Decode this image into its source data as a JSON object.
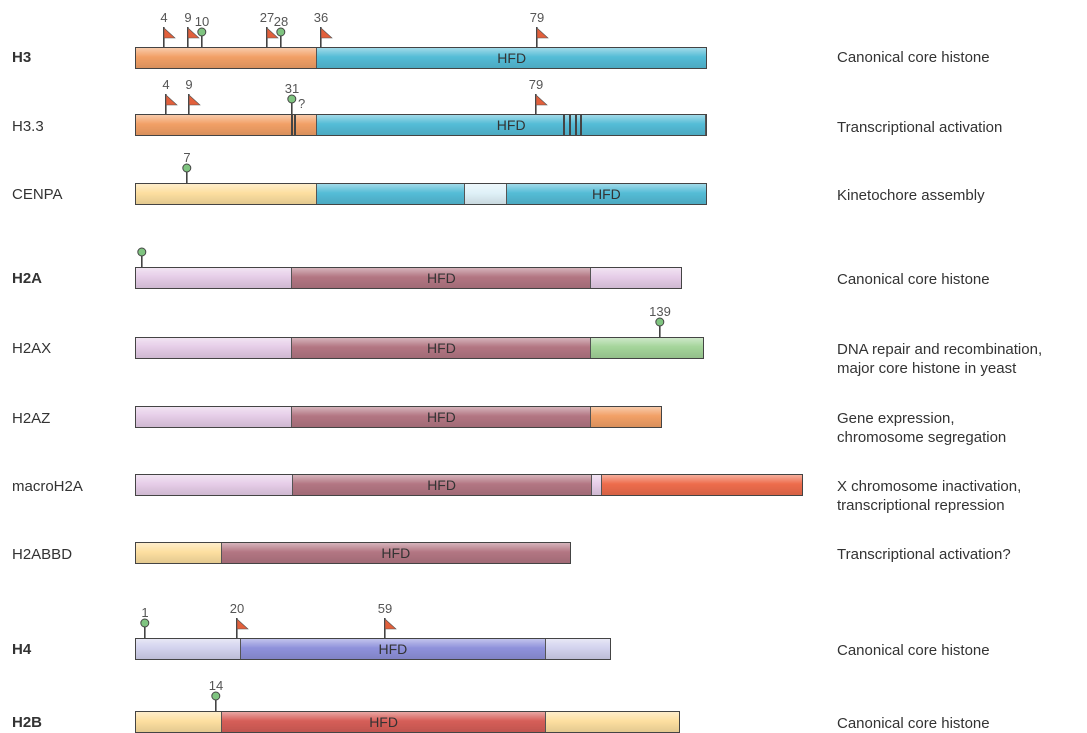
{
  "colors": {
    "orange": "#f2a066",
    "blue": "#54bcd6",
    "blue_light": "#dff1f8",
    "yellow": "#fddfa0",
    "lilac": "#e6cde8",
    "mauve": "#b37683",
    "green": "#a4d49a",
    "red_orange": "#ee6c4c",
    "periwinkle_light": "#d3d3ee",
    "periwinkle": "#8f92dc",
    "red": "#d65e58",
    "marker_green": "#7fc480",
    "marker_red": "#e2603c"
  },
  "rows": [
    {
      "name": "H3",
      "bold": true,
      "description": [
        "Canonical core histone"
      ],
      "segments": [
        {
          "color": "orange",
          "label": ""
        },
        {
          "color": "blue",
          "label": "HFD"
        }
      ],
      "markers": [
        {
          "num": "4",
          "type": "flag"
        },
        {
          "num": "9",
          "type": "flag"
        },
        {
          "num": "10",
          "type": "lollipop"
        },
        {
          "num": "27",
          "type": "flag"
        },
        {
          "num": "28",
          "type": "lollipop"
        },
        {
          "num": "36",
          "type": "flag"
        },
        {
          "num": "79",
          "type": "flag"
        }
      ]
    },
    {
      "name": "H3.3",
      "bold": false,
      "description": [
        "Transcriptional activation"
      ],
      "segments": [
        {
          "color": "orange",
          "label": ""
        },
        {
          "color": "blue",
          "label": "HFD"
        }
      ],
      "markers": [
        {
          "num": "4",
          "type": "flag"
        },
        {
          "num": "9",
          "type": "flag"
        },
        {
          "num": "31",
          "type": "lollipop"
        },
        {
          "num": "79",
          "type": "flag"
        }
      ],
      "question": "?"
    },
    {
      "name": "CENPA",
      "bold": false,
      "description": [
        "Kinetochore assembly"
      ],
      "segments": [
        {
          "color": "yellow",
          "label": ""
        },
        {
          "color": "blue",
          "label": ""
        },
        {
          "color": "blue_light",
          "label": ""
        },
        {
          "color": "blue",
          "label": "HFD"
        }
      ],
      "markers": [
        {
          "num": "7",
          "type": "lollipop"
        }
      ]
    },
    {
      "name": "H2A",
      "bold": true,
      "description": [
        "Canonical core histone"
      ],
      "segments": [
        {
          "color": "lilac",
          "label": ""
        },
        {
          "color": "mauve",
          "label": "HFD"
        },
        {
          "color": "lilac",
          "label": ""
        }
      ],
      "markers": [
        {
          "num": "",
          "type": "lollipop"
        }
      ]
    },
    {
      "name": "H2AX",
      "bold": false,
      "description": [
        "DNA repair and recombination,",
        "major core histone in yeast"
      ],
      "segments": [
        {
          "color": "lilac",
          "label": ""
        },
        {
          "color": "mauve",
          "label": "HFD"
        },
        {
          "color": "green",
          "label": ""
        }
      ],
      "markers": [
        {
          "num": "139",
          "type": "lollipop"
        }
      ]
    },
    {
      "name": "H2AZ",
      "bold": false,
      "description": [
        "Gene expression,",
        "chromosome segregation"
      ],
      "segments": [
        {
          "color": "lilac",
          "label": ""
        },
        {
          "color": "mauve",
          "label": "HFD"
        },
        {
          "color": "orange",
          "label": ""
        }
      ],
      "markers": []
    },
    {
      "name": "macroH2A",
      "bold": false,
      "description": [
        "X chromosome inactivation,",
        "transcriptional repression"
      ],
      "segments": [
        {
          "color": "lilac",
          "label": ""
        },
        {
          "color": "mauve",
          "label": "HFD"
        },
        {
          "color": "lilac",
          "label": ""
        },
        {
          "color": "red_orange",
          "label": ""
        }
      ],
      "markers": []
    },
    {
      "name": "H2ABBD",
      "bold": false,
      "description": [
        "Transcriptional activation?"
      ],
      "segments": [
        {
          "color": "yellow",
          "label": ""
        },
        {
          "color": "mauve",
          "label": "HFD"
        }
      ],
      "markers": []
    },
    {
      "name": "H4",
      "bold": true,
      "description": [
        "Canonical core histone"
      ],
      "segments": [
        {
          "color": "periwinkle_light",
          "label": ""
        },
        {
          "color": "periwinkle",
          "label": "HFD"
        },
        {
          "color": "periwinkle_light",
          "label": ""
        }
      ],
      "markers": [
        {
          "num": "1",
          "type": "lollipop"
        },
        {
          "num": "20",
          "type": "flag"
        },
        {
          "num": "59",
          "type": "flag"
        }
      ]
    },
    {
      "name": "H2B",
      "bold": true,
      "description": [
        "Canonical core histone"
      ],
      "segments": [
        {
          "color": "yellow",
          "label": ""
        },
        {
          "color": "red",
          "label": "HFD"
        },
        {
          "color": "yellow",
          "label": ""
        }
      ],
      "markers": [
        {
          "num": "14",
          "type": "lollipop"
        }
      ]
    }
  ]
}
